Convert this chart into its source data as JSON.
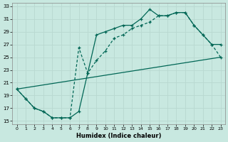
{
  "xlabel": "Humidex (Indice chaleur)",
  "xlim": [
    -0.5,
    23.5
  ],
  "ylim": [
    14.5,
    33.5
  ],
  "xticks": [
    0,
    1,
    2,
    3,
    4,
    5,
    6,
    7,
    8,
    9,
    10,
    11,
    12,
    13,
    14,
    15,
    16,
    17,
    18,
    19,
    20,
    21,
    22,
    23
  ],
  "yticks": [
    15,
    17,
    19,
    21,
    23,
    25,
    27,
    29,
    31,
    33
  ],
  "bg_color": "#c8e8e0",
  "line_color": "#006655",
  "grid_color": "#b0d8d0",
  "curve1_x": [
    0,
    1,
    2,
    3,
    4,
    5,
    6,
    7,
    8,
    9,
    10,
    11,
    12,
    13,
    14,
    15,
    16,
    17,
    18,
    19,
    20,
    21,
    22,
    23
  ],
  "curve1_y": [
    20,
    18.5,
    17,
    16.5,
    15.5,
    15.5,
    15.5,
    16.5,
    22.5,
    28.5,
    29,
    29.5,
    30,
    30,
    31,
    32.5,
    31.5,
    31.5,
    32,
    32,
    30,
    28.5,
    27,
    27
  ],
  "curve2_x": [
    0,
    1,
    2,
    3,
    4,
    5,
    6,
    7,
    8,
    9,
    10,
    11,
    12,
    13,
    14,
    15,
    16,
    17,
    18,
    19,
    20,
    21,
    22,
    23
  ],
  "curve2_y": [
    20,
    18.5,
    17,
    16.5,
    15.5,
    15.5,
    15.5,
    26.5,
    22.5,
    24.5,
    26,
    28,
    28.5,
    29.5,
    30,
    30.5,
    31.5,
    31.5,
    32,
    32,
    30,
    28.5,
    27,
    25
  ],
  "line3_x": [
    0,
    23
  ],
  "line3_y": [
    20,
    25
  ],
  "curve1_solid": true,
  "curve2_dashed": true
}
